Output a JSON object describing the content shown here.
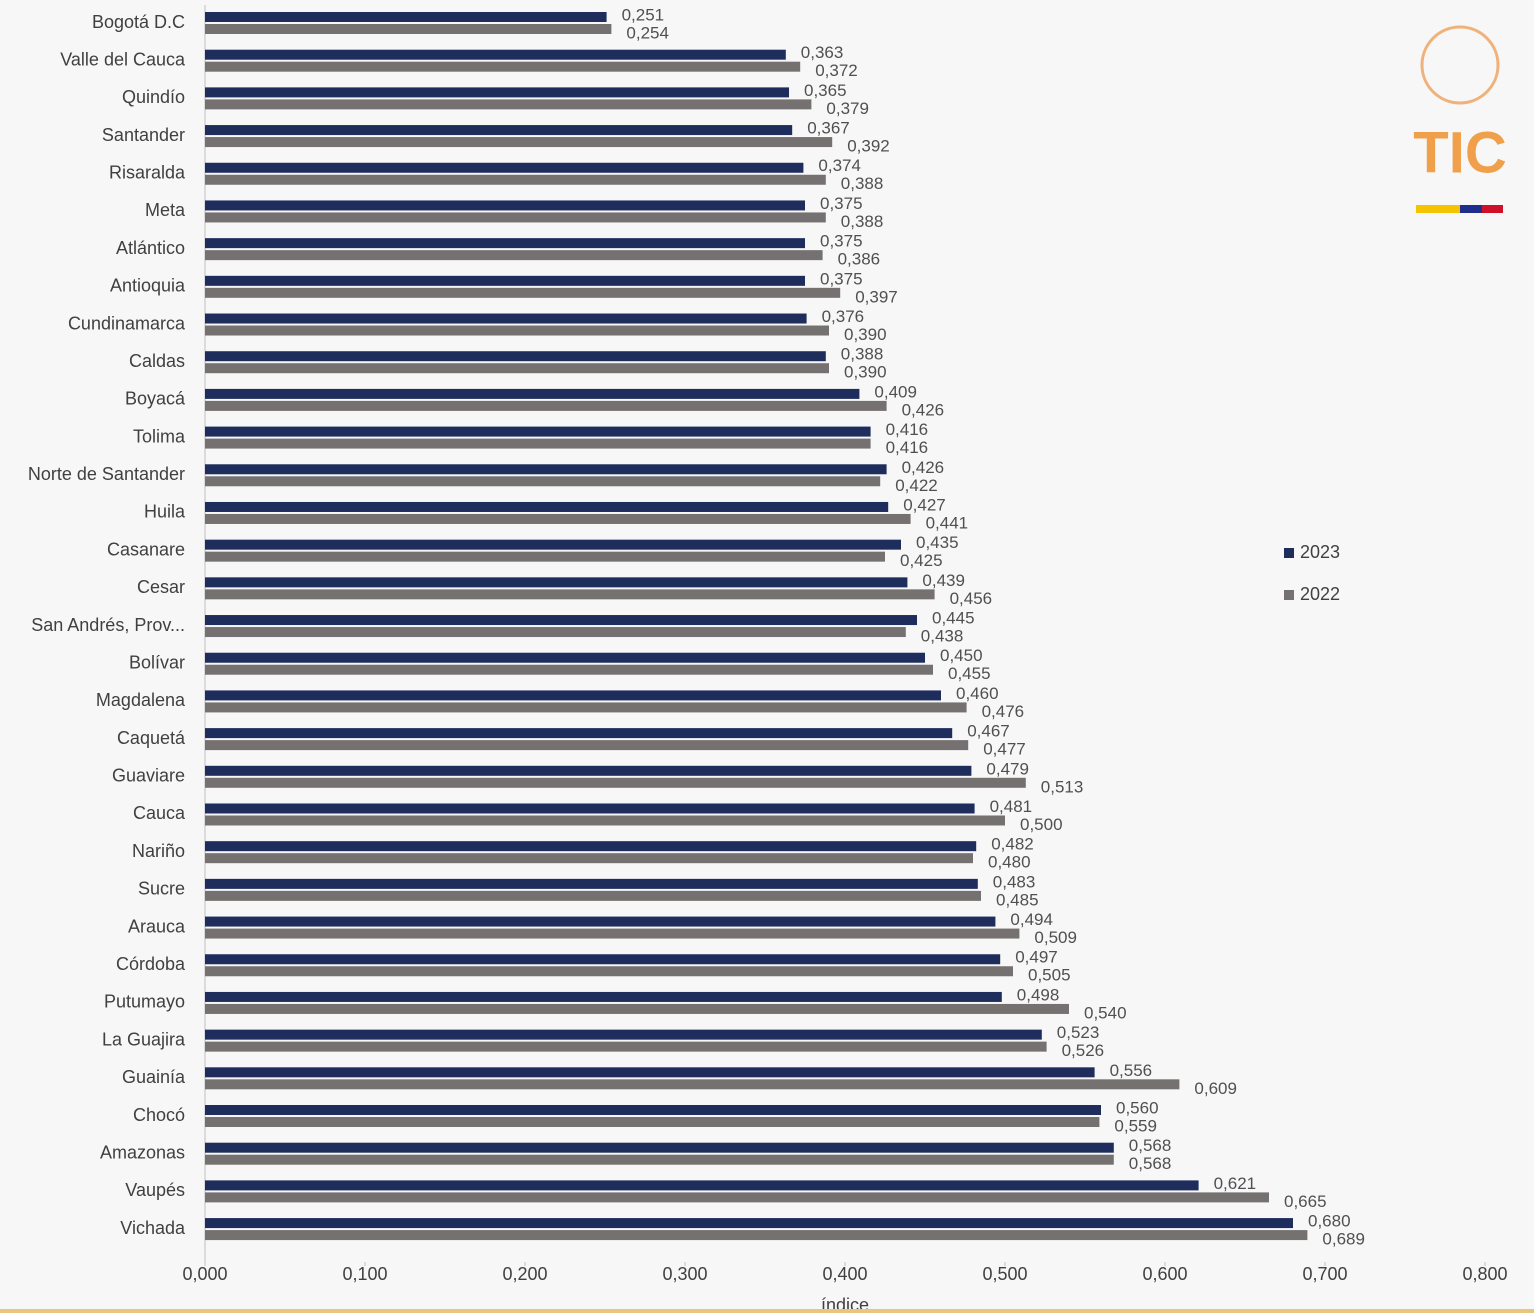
{
  "logo_text": "TIC",
  "chart_data": {
    "type": "hbar",
    "x_label": "índice",
    "categories": [
      "Bogotá D.C",
      "Valle del Cauca",
      "Quindío",
      "Santander",
      "Risaralda",
      "Meta",
      "Atlántico",
      "Antioquia",
      "Cundinamarca",
      "Caldas",
      "Boyacá",
      "Tolima",
      "Norte de Santander",
      "Huila",
      "Casanare",
      "Cesar",
      "San Andrés, Prov...",
      "Bolívar",
      "Magdalena",
      "Caquetá",
      "Guaviare",
      "Cauca",
      "Nariño",
      "Sucre",
      "Arauca",
      "Córdoba",
      "Putumayo",
      "La Guajira",
      "Guainía",
      "Chocó",
      "Amazonas",
      "Vaupés",
      "Vichada"
    ],
    "series": [
      {
        "name": "2023",
        "color": "#1f2d5c",
        "values": [
          0.251,
          0.363,
          0.365,
          0.367,
          0.374,
          0.375,
          0.375,
          0.375,
          0.376,
          0.388,
          0.409,
          0.416,
          0.426,
          0.427,
          0.435,
          0.439,
          0.445,
          0.45,
          0.46,
          0.467,
          0.479,
          0.481,
          0.482,
          0.483,
          0.494,
          0.497,
          0.498,
          0.523,
          0.556,
          0.56,
          0.568,
          0.621,
          0.68
        ],
        "value_labels": [
          "0,251",
          "0,363",
          "0,365",
          "0,367",
          "0,374",
          "0,375",
          "0,375",
          "0,375",
          "0,376",
          "0,388",
          "0,409",
          "0,416",
          "0,426",
          "0,427",
          "0,435",
          "0,439",
          "0,445",
          "0,450",
          "0,460",
          "0,467",
          "0,479",
          "0,481",
          "0,482",
          "0,483",
          "0,494",
          "0,497",
          "0,498",
          "0,523",
          "0,556",
          "0,560",
          "0,568",
          "0,621",
          "0,680"
        ]
      },
      {
        "name": "2022",
        "color": "#767171",
        "values": [
          0.254,
          0.372,
          0.379,
          0.392,
          0.388,
          0.388,
          0.386,
          0.397,
          0.39,
          0.39,
          0.426,
          0.416,
          0.422,
          0.441,
          0.425,
          0.456,
          0.438,
          0.455,
          0.476,
          0.477,
          0.513,
          0.5,
          0.48,
          0.485,
          0.509,
          0.505,
          0.54,
          0.526,
          0.609,
          0.559,
          0.568,
          0.665,
          0.689
        ],
        "value_labels": [
          "0,254",
          "0,372",
          "0,379",
          "0,392",
          "0,388",
          "0,388",
          "0,386",
          "0,397",
          "0,390",
          "0,390",
          "0,426",
          "0,416",
          "0,422",
          "0,441",
          "0,425",
          "0,456",
          "0,438",
          "0,455",
          "0,476",
          "0,477",
          "0,513",
          "0,500",
          "0,480",
          "0,485",
          "0,509",
          "0,505",
          "0,540",
          "0,526",
          "0,609",
          "0,559",
          "0,568",
          "0,665",
          "0,689"
        ]
      }
    ],
    "xlim": [
      0,
      0.8
    ],
    "xticks": [
      {
        "value": 0,
        "label": "0,000"
      },
      {
        "value": 0.1,
        "label": "0,100"
      },
      {
        "value": 0.2,
        "label": "0,200"
      },
      {
        "value": 0.3,
        "label": "0,300"
      },
      {
        "value": 0.4,
        "label": "0,400"
      },
      {
        "value": 0.5,
        "label": "0,500"
      },
      {
        "value": 0.6,
        "label": "0,600"
      },
      {
        "value": 0.7,
        "label": "0,700"
      },
      {
        "value": 0.8,
        "label": "0,800"
      }
    ],
    "legend": "right",
    "grid": false
  }
}
